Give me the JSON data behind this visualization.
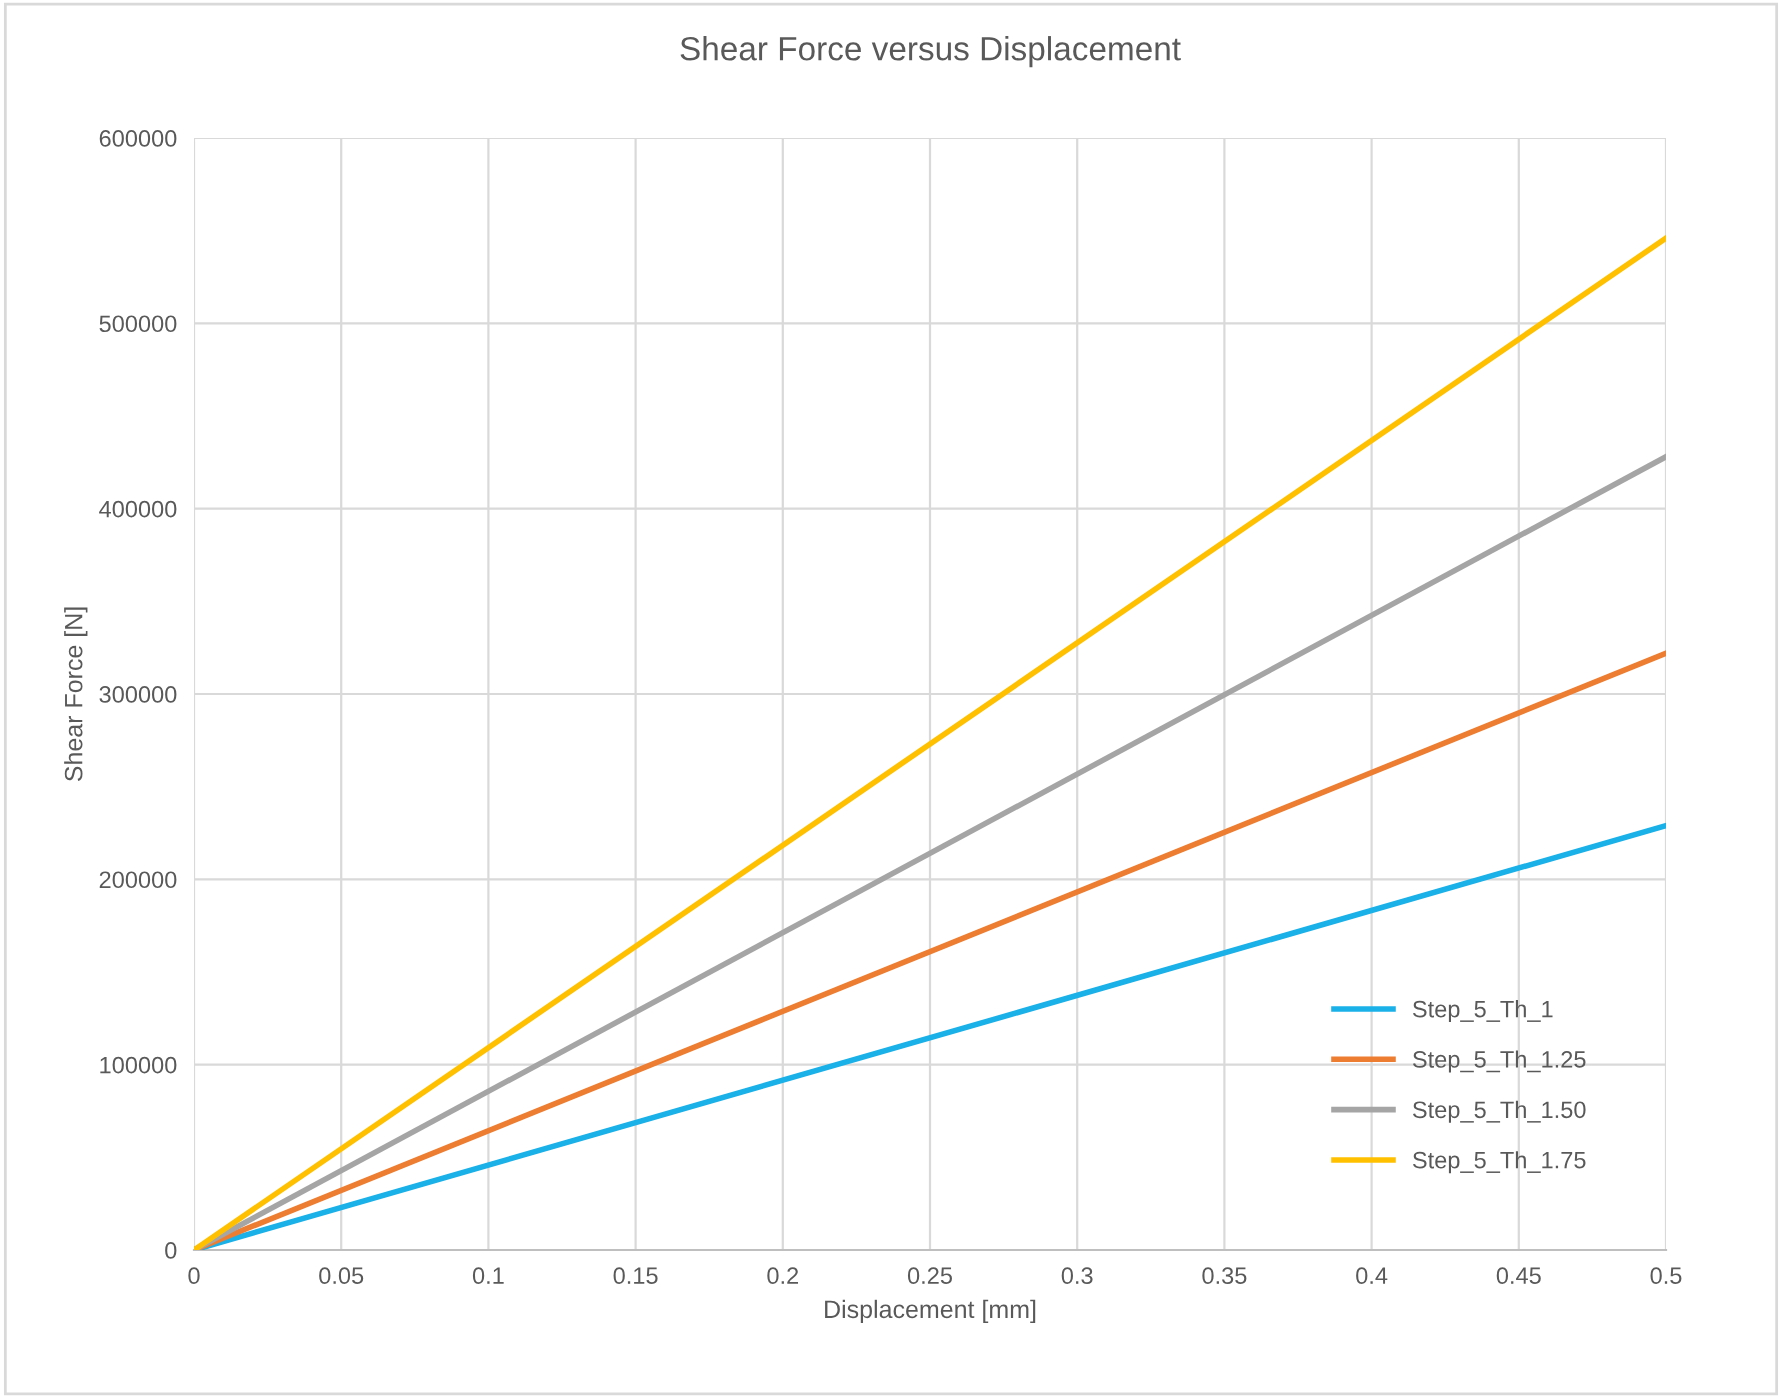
{
  "chart_data": {
    "type": "line",
    "title": "Shear Force versus Displacement",
    "xlabel": "Displacement [mm]",
    "ylabel": "Shear Force [N]",
    "x": [
      0,
      0.5
    ],
    "series": [
      {
        "name": "Step_5_Th_1",
        "color": "#1ab0e8",
        "values": [
          0,
          229000
        ]
      },
      {
        "name": "Step_5_Th_1.25",
        "color": "#ed7d31",
        "values": [
          0,
          322000
        ]
      },
      {
        "name": "Step_5_Th_1.50",
        "color": "#a5a5a5",
        "values": [
          0,
          428000
        ]
      },
      {
        "name": "Step_5_Th_1.75",
        "color": "#ffc000",
        "values": [
          0,
          546000
        ]
      }
    ],
    "xlim": [
      0,
      0.5
    ],
    "xticks": [
      0,
      0.05,
      0.1,
      0.15,
      0.2,
      0.25,
      0.3,
      0.35,
      0.4,
      0.45,
      0.5
    ],
    "ylim": [
      0,
      600000
    ],
    "yticks": [
      0,
      100000,
      200000,
      300000,
      400000,
      500000,
      600000
    ],
    "grid": true,
    "legend": "bottom right",
    "marker": "none",
    "line_style": "solid"
  }
}
